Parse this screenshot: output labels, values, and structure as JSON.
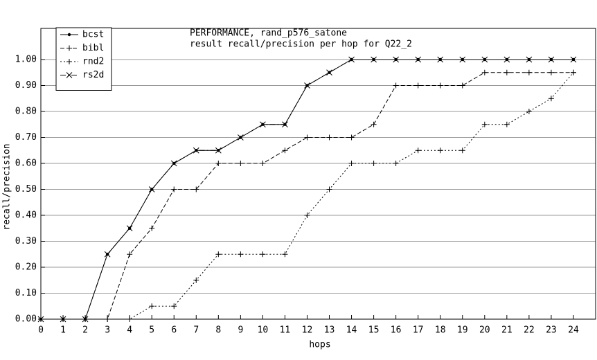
{
  "chart_data": {
    "type": "line",
    "title": "PERFORMANCE, rand_p576_satone",
    "subtitle": "result recall/precision per hop for Q22_2",
    "x_label": "hops",
    "y_label": "recall/precision",
    "x": [
      0,
      1,
      2,
      3,
      4,
      5,
      6,
      7,
      8,
      9,
      10,
      11,
      12,
      13,
      14,
      15,
      16,
      17,
      18,
      19,
      20,
      21,
      22,
      23,
      24
    ],
    "xlim": [
      0,
      25
    ],
    "xticks": [
      0,
      1,
      2,
      3,
      4,
      5,
      6,
      7,
      8,
      9,
      10,
      11,
      12,
      13,
      14,
      15,
      16,
      17,
      18,
      19,
      20,
      21,
      22,
      23,
      24
    ],
    "ylim": [
      0,
      1.12
    ],
    "yticks": [
      {
        "value": 0,
        "label": "0.00"
      },
      {
        "value": 0.1,
        "label": "0.10"
      },
      {
        "value": 0.2,
        "label": "0.20"
      },
      {
        "value": 0.3,
        "label": "0.30"
      },
      {
        "value": 0.4,
        "label": "0.40"
      },
      {
        "value": 0.5,
        "label": "0.50"
      },
      {
        "value": 0.6,
        "label": "0.60"
      },
      {
        "value": 0.7,
        "label": "0.70"
      },
      {
        "value": 0.8,
        "label": "0.80"
      },
      {
        "value": 0.9,
        "label": "0.90"
      },
      {
        "value": 1,
        "label": "1.00"
      }
    ],
    "grid": true,
    "legend": "upper left",
    "series": [
      {
        "name": "bcst",
        "color": "#000000",
        "marker": "dot",
        "line_style": "solid",
        "values": [
          0,
          0,
          0,
          0.25,
          0.35,
          0.5,
          0.6,
          0.65,
          0.65,
          0.7,
          0.75,
          0.75,
          0.9,
          0.95,
          1,
          1,
          1,
          1,
          1,
          1,
          1,
          1,
          1,
          1,
          1
        ]
      },
      {
        "name": "bibl",
        "color": "#000000",
        "marker": "plus",
        "line_style": "dashed",
        "values": [
          0,
          0,
          0,
          0,
          0.25,
          0.35,
          0.5,
          0.5,
          0.6,
          0.6,
          0.6,
          0.65,
          0.7,
          0.7,
          0.7,
          0.75,
          0.9,
          0.9,
          0.9,
          0.9,
          0.95,
          0.95,
          0.95,
          0.95,
          0.95
        ]
      },
      {
        "name": "rnd2",
        "color": "#000000",
        "marker": "plus",
        "line_style": "dotted",
        "values": [
          0,
          0,
          0,
          0,
          0,
          0.05,
          0.05,
          0.15,
          0.25,
          0.25,
          0.25,
          0.25,
          0.4,
          0.5,
          0.6,
          0.6,
          0.6,
          0.65,
          0.65,
          0.65,
          0.75,
          0.75,
          0.8,
          0.85,
          0.95
        ]
      },
      {
        "name": "rs2d",
        "color": "#000000",
        "marker": "cross",
        "line_style": "dashdot",
        "values": [
          0,
          0,
          0,
          0.25,
          0.35,
          0.5,
          0.6,
          0.65,
          0.65,
          0.7,
          0.75,
          0.75,
          0.9,
          0.95,
          1,
          1,
          1,
          1,
          1,
          1,
          1,
          1,
          1,
          1,
          1
        ]
      }
    ]
  }
}
